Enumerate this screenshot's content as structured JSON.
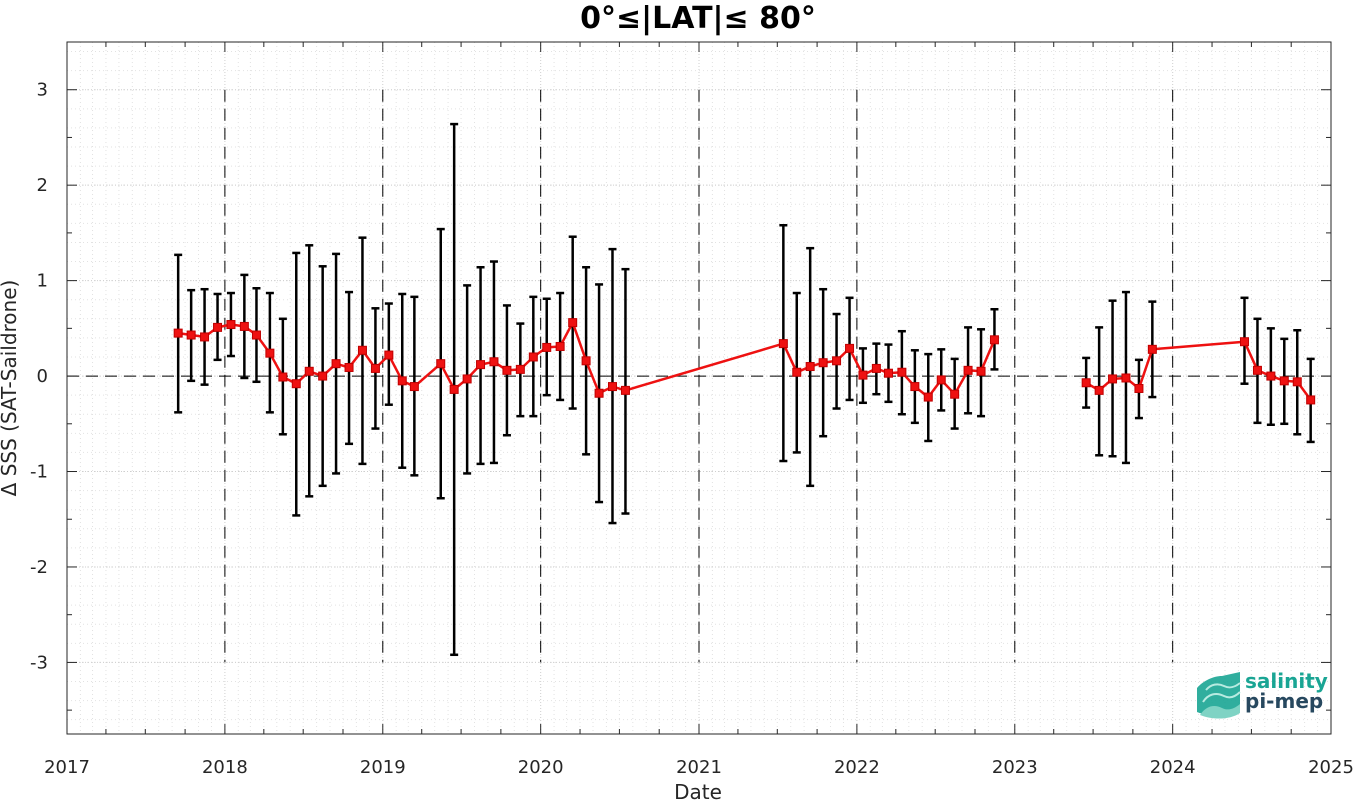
{
  "chart_data": {
    "type": "line",
    "title": "0°≤|LAT|≤ 80°",
    "xlabel": "Date",
    "ylabel": "Δ SSS (SAT-Saildrone)",
    "xlim": [
      "2017-01-01",
      "2025-01-01"
    ],
    "ylim": [
      -3.75,
      3.5
    ],
    "x_ticks": [
      "2017",
      "2018",
      "2019",
      "2020",
      "2021",
      "2022",
      "2023",
      "2024",
      "2025"
    ],
    "y_ticks": [
      -3,
      -2,
      -1,
      0,
      1,
      2,
      3
    ],
    "grid": true,
    "zero_line": "dashed",
    "year_boundaries": "dashed vertical lines",
    "series": [
      {
        "color": "#ee1111",
        "marker": "square",
        "errorbar_color": "#000000",
        "segments": [
          [
            {
              "x": "2017-09-15",
              "y": 0.45,
              "lo": -0.38,
              "hi": 1.27
            },
            {
              "x": "2017-10-15",
              "y": 0.43,
              "lo": -0.05,
              "hi": 0.9
            },
            {
              "x": "2017-11-15",
              "y": 0.41,
              "lo": -0.09,
              "hi": 0.91
            },
            {
              "x": "2017-12-15",
              "y": 0.51,
              "lo": 0.17,
              "hi": 0.86
            },
            {
              "x": "2018-01-15",
              "y": 0.54,
              "lo": 0.21,
              "hi": 0.87
            },
            {
              "x": "2018-02-15",
              "y": 0.52,
              "lo": -0.02,
              "hi": 1.06
            },
            {
              "x": "2018-03-15",
              "y": 0.43,
              "lo": -0.06,
              "hi": 0.92
            },
            {
              "x": "2018-04-15",
              "y": 0.24,
              "lo": -0.38,
              "hi": 0.87
            },
            {
              "x": "2018-05-15",
              "y": -0.01,
              "lo": -0.61,
              "hi": 0.6
            },
            {
              "x": "2018-06-15",
              "y": -0.08,
              "lo": -1.46,
              "hi": 1.29
            },
            {
              "x": "2018-07-15",
              "y": 0.05,
              "lo": -1.26,
              "hi": 1.37
            },
            {
              "x": "2018-08-15",
              "y": 0.0,
              "lo": -1.15,
              "hi": 1.15
            },
            {
              "x": "2018-09-15",
              "y": 0.13,
              "lo": -1.02,
              "hi": 1.28
            },
            {
              "x": "2018-10-15",
              "y": 0.09,
              "lo": -0.71,
              "hi": 0.88
            },
            {
              "x": "2018-11-15",
              "y": 0.27,
              "lo": -0.92,
              "hi": 1.45
            },
            {
              "x": "2018-12-15",
              "y": 0.08,
              "lo": -0.55,
              "hi": 0.71
            },
            {
              "x": "2019-01-15",
              "y": 0.22,
              "lo": -0.3,
              "hi": 0.76
            },
            {
              "x": "2019-02-15",
              "y": -0.05,
              "lo": -0.96,
              "hi": 0.86
            },
            {
              "x": "2019-03-15",
              "y": -0.11,
              "lo": -1.04,
              "hi": 0.83
            },
            {
              "x": "2019-05-15",
              "y": 0.13,
              "lo": -1.28,
              "hi": 1.54
            },
            {
              "x": "2019-06-15",
              "y": -0.14,
              "lo": -2.92,
              "hi": 2.64
            },
            {
              "x": "2019-07-15",
              "y": -0.03,
              "lo": -1.02,
              "hi": 0.95
            },
            {
              "x": "2019-08-15",
              "y": 0.12,
              "lo": -0.92,
              "hi": 1.14
            },
            {
              "x": "2019-09-15",
              "y": 0.15,
              "lo": -0.91,
              "hi": 1.2
            },
            {
              "x": "2019-10-15",
              "y": 0.06,
              "lo": -0.62,
              "hi": 0.74
            },
            {
              "x": "2019-11-15",
              "y": 0.07,
              "lo": -0.42,
              "hi": 0.55
            },
            {
              "x": "2019-12-15",
              "y": 0.2,
              "lo": -0.42,
              "hi": 0.83
            },
            {
              "x": "2020-01-15",
              "y": 0.3,
              "lo": -0.2,
              "hi": 0.81
            },
            {
              "x": "2020-02-15",
              "y": 0.31,
              "lo": -0.25,
              "hi": 0.87
            },
            {
              "x": "2020-03-15",
              "y": 0.56,
              "lo": -0.34,
              "hi": 1.46
            },
            {
              "x": "2020-04-15",
              "y": 0.16,
              "lo": -0.82,
              "hi": 1.14
            },
            {
              "x": "2020-05-15",
              "y": -0.18,
              "lo": -1.32,
              "hi": 0.96
            },
            {
              "x": "2020-06-15",
              "y": -0.11,
              "lo": -1.54,
              "hi": 1.33
            },
            {
              "x": "2020-07-15",
              "y": -0.15,
              "lo": -1.44,
              "hi": 1.12
            },
            {
              "x": "2021-07-15",
              "y": 0.34,
              "lo": -0.89,
              "hi": 1.58
            },
            {
              "x": "2021-08-15",
              "y": 0.04,
              "lo": -0.8,
              "hi": 0.87
            },
            {
              "x": "2021-09-15",
              "y": 0.1,
              "lo": -1.15,
              "hi": 1.34
            },
            {
              "x": "2021-10-15",
              "y": 0.14,
              "lo": -0.63,
              "hi": 0.91
            },
            {
              "x": "2021-11-15",
              "y": 0.16,
              "lo": -0.34,
              "hi": 0.65
            },
            {
              "x": "2021-12-15",
              "y": 0.29,
              "lo": -0.25,
              "hi": 0.82
            },
            {
              "x": "2022-01-15",
              "y": 0.01,
              "lo": -0.28,
              "hi": 0.29
            },
            {
              "x": "2022-02-15",
              "y": 0.08,
              "lo": -0.19,
              "hi": 0.34
            },
            {
              "x": "2022-03-15",
              "y": 0.03,
              "lo": -0.27,
              "hi": 0.33
            },
            {
              "x": "2022-04-15",
              "y": 0.04,
              "lo": -0.4,
              "hi": 0.47
            },
            {
              "x": "2022-05-15",
              "y": -0.11,
              "lo": -0.49,
              "hi": 0.27
            },
            {
              "x": "2022-06-15",
              "y": -0.22,
              "lo": -0.68,
              "hi": 0.23
            },
            {
              "x": "2022-07-15",
              "y": -0.04,
              "lo": -0.36,
              "hi": 0.28
            },
            {
              "x": "2022-08-15",
              "y": -0.19,
              "lo": -0.55,
              "hi": 0.18
            },
            {
              "x": "2022-09-15",
              "y": 0.06,
              "lo": -0.39,
              "hi": 0.51
            },
            {
              "x": "2022-10-15",
              "y": 0.05,
              "lo": -0.42,
              "hi": 0.49
            },
            {
              "x": "2022-11-15",
              "y": 0.38,
              "lo": 0.07,
              "hi": 0.7
            }
          ],
          [
            {
              "x": "2023-06-15",
              "y": -0.07,
              "lo": -0.33,
              "hi": 0.19
            },
            {
              "x": "2023-07-15",
              "y": -0.15,
              "lo": -0.83,
              "hi": 0.51
            },
            {
              "x": "2023-08-15",
              "y": -0.03,
              "lo": -0.84,
              "hi": 0.79
            },
            {
              "x": "2023-09-15",
              "y": -0.02,
              "lo": -0.91,
              "hi": 0.88
            },
            {
              "x": "2023-10-15",
              "y": -0.13,
              "lo": -0.44,
              "hi": 0.17
            },
            {
              "x": "2023-11-15",
              "y": 0.28,
              "lo": -0.22,
              "hi": 0.78
            },
            {
              "x": "2024-06-15",
              "y": 0.36,
              "lo": -0.08,
              "hi": 0.82
            },
            {
              "x": "2024-07-15",
              "y": 0.06,
              "lo": -0.49,
              "hi": 0.6
            },
            {
              "x": "2024-08-15",
              "y": 0.0,
              "lo": -0.51,
              "hi": 0.5
            },
            {
              "x": "2024-09-15",
              "y": -0.05,
              "lo": -0.5,
              "hi": 0.39
            },
            {
              "x": "2024-10-15",
              "y": -0.06,
              "lo": -0.61,
              "hi": 0.48
            },
            {
              "x": "2024-11-15",
              "y": -0.25,
              "lo": -0.69,
              "hi": 0.18
            }
          ]
        ]
      }
    ]
  },
  "logo": {
    "line1": "salinity",
    "line2": "pi-mep",
    "color1": "#1aa594",
    "color2": "#27485f"
  }
}
